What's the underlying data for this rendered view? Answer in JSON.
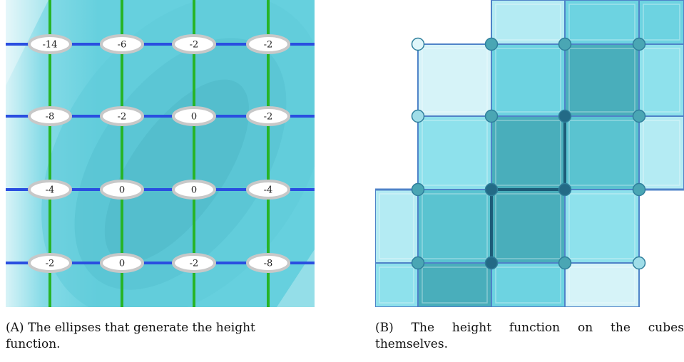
{
  "panel_a": {
    "grid_values": [
      [
        "-14",
        "-6",
        "-2",
        "-2"
      ],
      [
        "-8",
        "-2",
        "0",
        "-2"
      ],
      [
        "-4",
        "0",
        "0",
        "-4"
      ],
      [
        "-2",
        "0",
        "-2",
        "-8"
      ]
    ],
    "colors": {
      "horizontal_lines": "#2a4ee0",
      "vertical_lines": "#27b427",
      "background": "#66d0de",
      "ellipse_fill": "#ffffff",
      "ellipse_border": "#c8c8c8"
    }
  },
  "panel_b": {
    "colors": {
      "cube_edge": "#4f83c8",
      "highlight_edge": "#1d5c78",
      "node_dark": "#236a86",
      "node_mid": "#4aa6b4",
      "node_light": "#9fdde8"
    }
  },
  "captions": {
    "a_label": "(A)",
    "a_line1": "The ellipses that generate the height",
    "a_line2": "function.",
    "b_label": "(B)",
    "b_line1_words": [
      "The",
      "height",
      "function",
      "on",
      "the",
      "cubes"
    ],
    "b_line2": "themselves."
  }
}
